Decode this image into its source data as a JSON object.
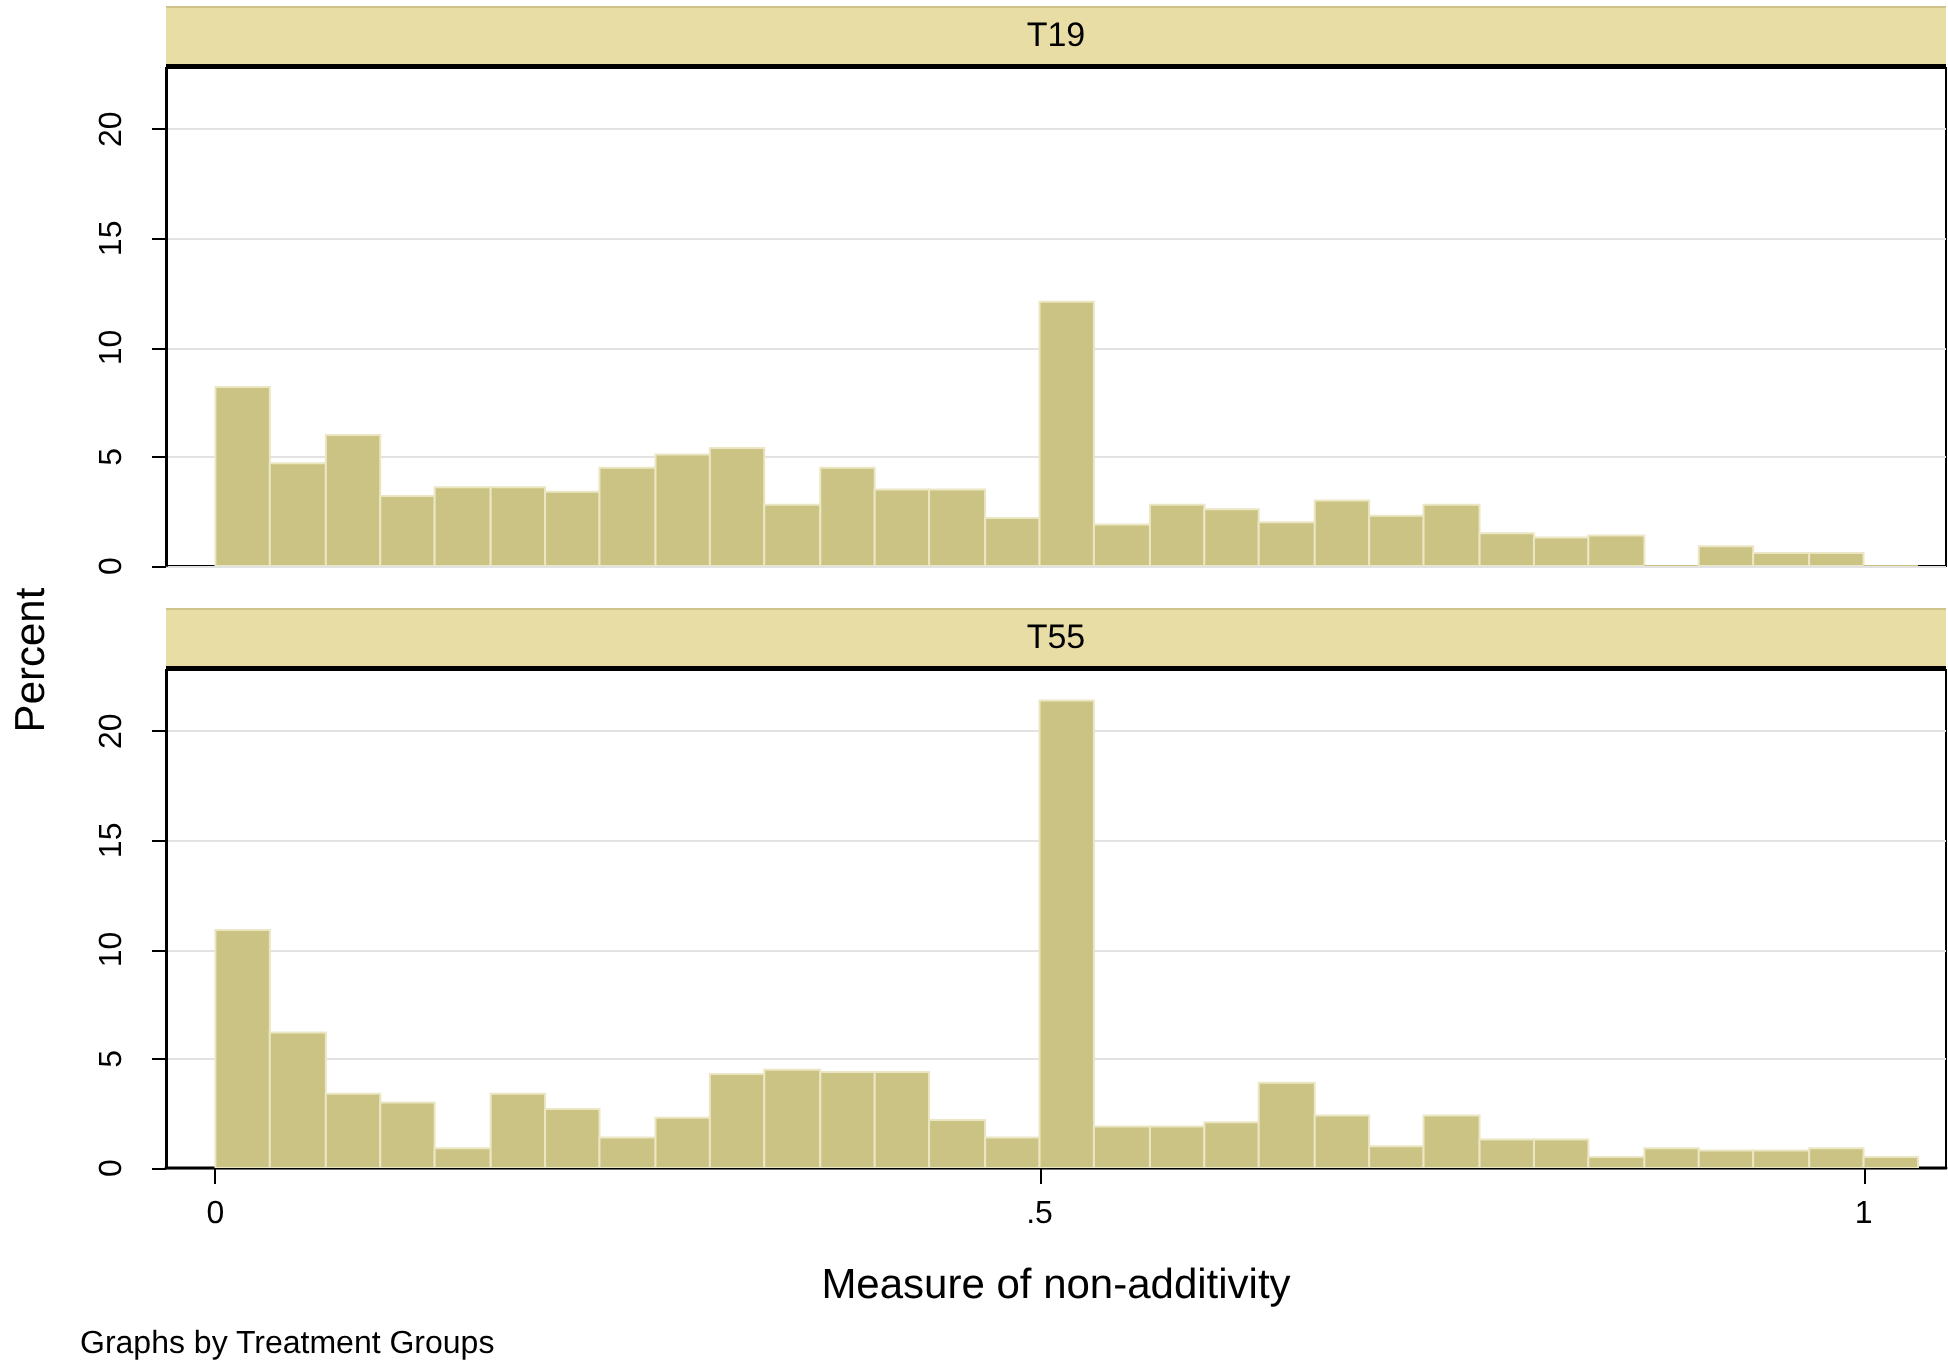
{
  "chart_data": [
    {
      "type": "histogram",
      "title": "T19",
      "ylabel": "Percent",
      "bins": [
        0,
        0.033,
        0.067,
        0.1,
        0.133,
        0.167,
        0.2,
        0.233,
        0.267,
        0.3,
        0.333,
        0.367,
        0.4,
        0.433,
        0.467,
        0.5,
        0.533,
        0.567,
        0.6,
        0.633,
        0.667,
        0.7,
        0.733,
        0.767,
        0.8,
        0.833,
        0.867,
        0.9,
        0.933,
        0.967,
        1,
        1.033
      ],
      "values": [
        8.2,
        4.7,
        6.0,
        3.2,
        3.6,
        3.6,
        3.4,
        4.5,
        5.1,
        5.4,
        2.8,
        4.5,
        3.5,
        3.5,
        2.2,
        12.1,
        1.9,
        2.8,
        2.6,
        2.0,
        3.0,
        2.3,
        2.8,
        1.5,
        1.3,
        1.4,
        0,
        0.9,
        0.6,
        0.6,
        0
      ],
      "color": "#cbc383",
      "xlim": [
        -0.03,
        1.05
      ],
      "ylim": [
        0,
        22.8
      ],
      "yticks": [
        0,
        5,
        10,
        15,
        20
      ],
      "grid": "y",
      "tick_labels": "y"
    },
    {
      "type": "histogram",
      "title": "T55",
      "xlabel": "Measure of non-additivity",
      "annotations": [
        "Graphs by Treatment Groups"
      ],
      "bins": [
        0,
        0.033,
        0.067,
        0.1,
        0.133,
        0.167,
        0.2,
        0.233,
        0.267,
        0.3,
        0.333,
        0.367,
        0.4,
        0.433,
        0.467,
        0.5,
        0.533,
        0.567,
        0.6,
        0.633,
        0.667,
        0.7,
        0.733,
        0.767,
        0.8,
        0.833,
        0.867,
        0.9,
        0.933,
        0.967,
        1,
        1.033
      ],
      "values": [
        10.9,
        6.2,
        3.4,
        3.0,
        0.9,
        3.4,
        2.7,
        1.4,
        2.3,
        4.3,
        4.5,
        4.4,
        4.4,
        2.2,
        1.4,
        21.4,
        1.9,
        1.9,
        2.1,
        3.9,
        2.4,
        1.0,
        2.4,
        1.3,
        1.3,
        0.5,
        0.9,
        0.8,
        0.8,
        0.9,
        0.5
      ],
      "color": "#cbc383",
      "xlim": [
        -0.03,
        1.05
      ],
      "xticks": [
        0,
        {
          "value": 0.5,
          "label": ".5"
        },
        1
      ],
      "ylim": [
        0,
        22.8
      ],
      "yticks": [
        0,
        5,
        10,
        15,
        20
      ],
      "grid": "y"
    }
  ]
}
